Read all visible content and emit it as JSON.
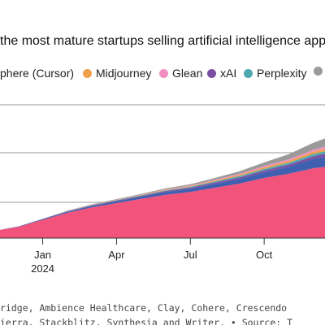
{
  "title": "the most mature startups selling artificial intelligence apps",
  "legend": [
    {
      "label": "ysphere (Cursor)",
      "color": "#3f5fb0"
    },
    {
      "label": "Midjourney",
      "color": "#f0a04b"
    },
    {
      "label": "Glean",
      "color": "#f08fc0"
    },
    {
      "label": "xAI",
      "color": "#7b4fa3"
    },
    {
      "label": "Perplexity",
      "color": "#4fa8b0"
    },
    {
      "label": "",
      "color": "#9a9a9a"
    }
  ],
  "chart_data": {
    "type": "area",
    "stacked": true,
    "x": [
      "2023-11",
      "2023-12",
      "2024-01",
      "2024-02",
      "2024-03",
      "2024-04",
      "2024-05",
      "2024-06",
      "2024-07",
      "2024-08",
      "2024-09",
      "2024-10",
      "2024-11",
      "2024-12",
      "2025-01"
    ],
    "x_ticks": [
      {
        "x": "2024-01",
        "label": "Jan",
        "sublabel": "2024"
      },
      {
        "x": "2024-04",
        "label": "Apr",
        "sublabel": ""
      },
      {
        "x": "2024-07",
        "label": "Jul",
        "sublabel": ""
      },
      {
        "x": "2024-10",
        "label": "Oct",
        "sublabel": ""
      }
    ],
    "grid": true,
    "series": [
      {
        "color": "#f2537a",
        "values": [
          5,
          8,
          13,
          18,
          22,
          25,
          28,
          31,
          33,
          36,
          39,
          43,
          46,
          50,
          52
        ]
      },
      {
        "color": "#3f5fb0",
        "values": [
          0,
          0.3,
          0.5,
          0.8,
          1,
          1.3,
          1.6,
          2,
          2.3,
          2.8,
          3.3,
          4,
          5,
          6.5,
          8
        ]
      },
      {
        "color": "#7b4fa3",
        "values": [
          0,
          0,
          0.2,
          0.3,
          0.4,
          0.5,
          0.6,
          0.7,
          0.8,
          1,
          1.2,
          1.4,
          1.6,
          2,
          2.4
        ]
      },
      {
        "color": "#4fa8b0",
        "values": [
          0,
          0,
          0,
          0.1,
          0.2,
          0.3,
          0.4,
          0.5,
          0.6,
          0.7,
          0.9,
          1.1,
          1.3,
          1.6,
          2
        ]
      },
      {
        "color": "#f0a04b",
        "values": [
          0,
          0,
          0,
          0.1,
          0.2,
          0.2,
          0.3,
          0.4,
          0.5,
          0.7,
          0.9,
          1.1,
          1.4,
          1.7,
          2
        ]
      },
      {
        "color": "#f08fc0",
        "values": [
          0,
          0,
          0,
          0.1,
          0.1,
          0.2,
          0.2,
          0.3,
          0.4,
          0.5,
          0.7,
          0.9,
          1.1,
          1.4,
          1.8
        ]
      },
      {
        "color": "#9a9a9a",
        "values": [
          0,
          0,
          0.1,
          0.2,
          0.3,
          0.4,
          0.5,
          0.7,
          0.9,
          1.3,
          1.8,
          2.6,
          3.6,
          5,
          6.5
        ]
      }
    ]
  },
  "footnote": [
    "ridge, Ambience Healthcare, Clay, Cohere, Crescendo",
    "ierra, Stackblitz, Synthesia and Writer. • Source: T"
  ]
}
